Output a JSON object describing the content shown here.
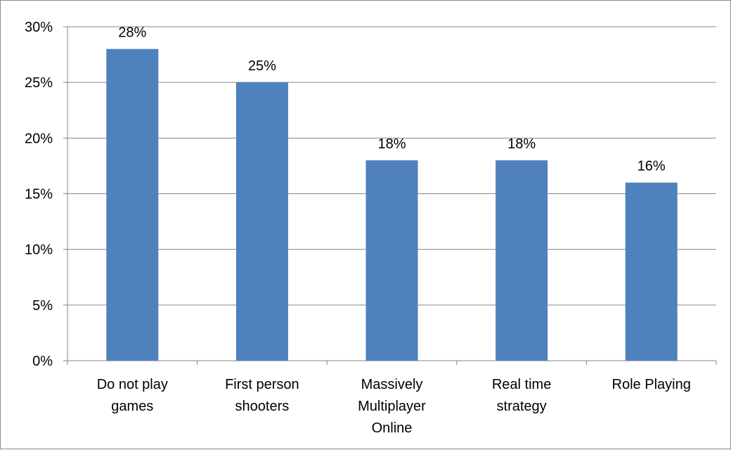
{
  "chart_data": {
    "type": "bar",
    "title": "",
    "xlabel": "",
    "ylabel": "",
    "categories": [
      [
        "Do not play",
        "games"
      ],
      [
        "First person",
        "shooters"
      ],
      [
        "Massively",
        "Multiplayer",
        "Online"
      ],
      [
        "Real time",
        "strategy"
      ],
      [
        "Role Playing"
      ]
    ],
    "values": [
      28,
      25,
      18,
      18,
      16
    ],
    "data_labels": [
      "28%",
      "25%",
      "18%",
      "18%",
      "16%"
    ],
    "y_ticks": [
      0,
      5,
      10,
      15,
      20,
      25,
      30
    ],
    "y_tick_labels": [
      "0%",
      "5%",
      "10%",
      "15%",
      "20%",
      "25%",
      "30%"
    ],
    "ylim": [
      0,
      30
    ],
    "grid": true,
    "legend": "none",
    "bar_color": "#4f81bd",
    "grid_color": "#868686"
  }
}
